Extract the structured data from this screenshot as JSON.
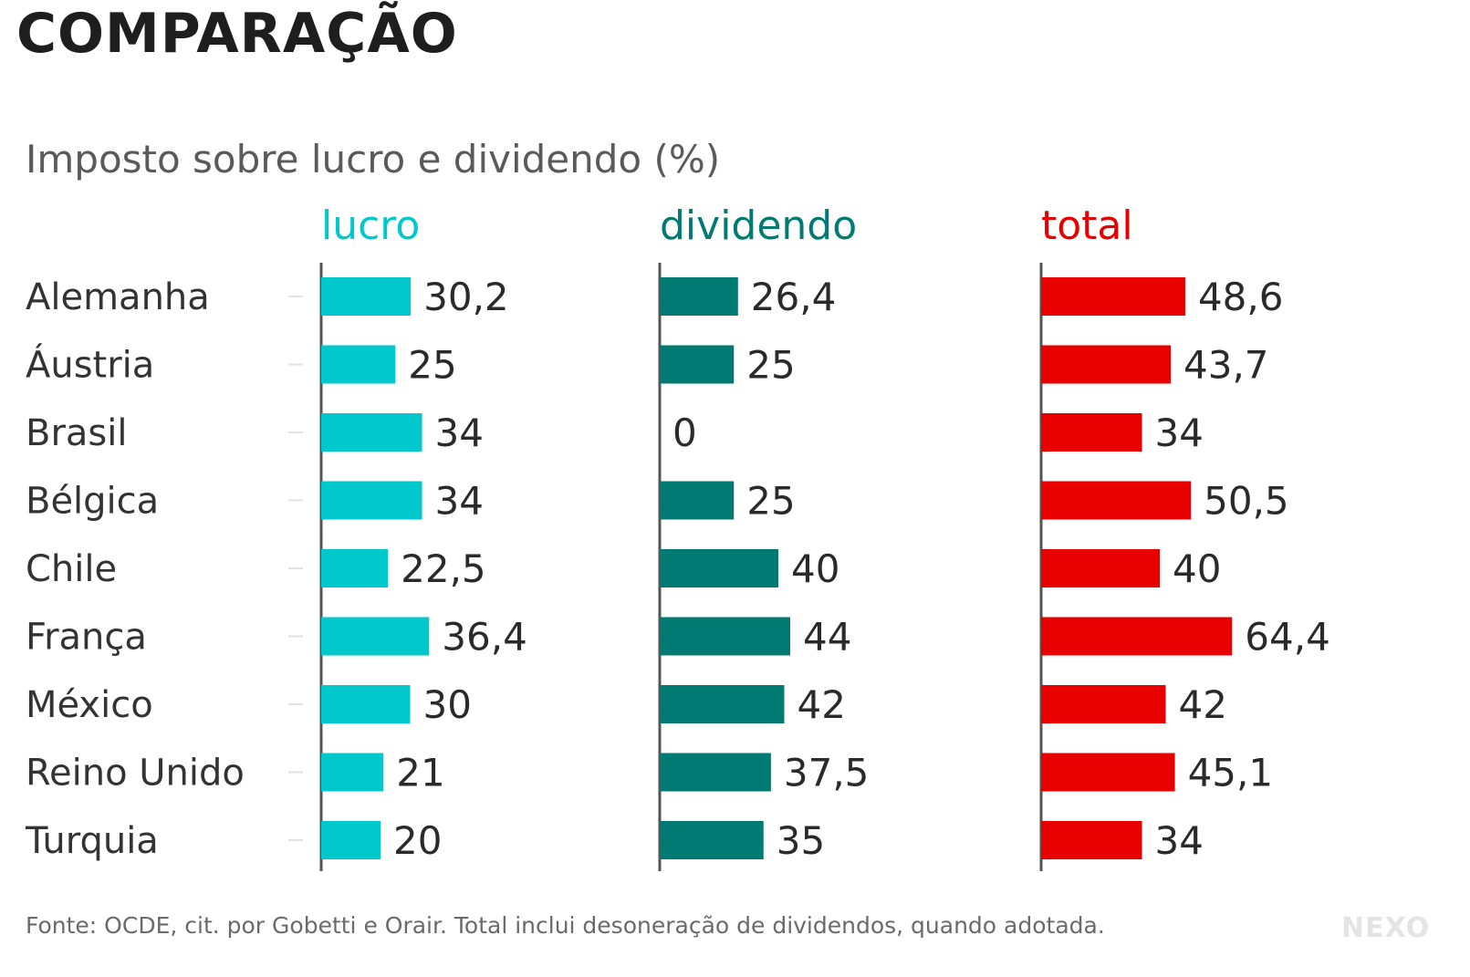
{
  "headline": "COMPARAÇÃO",
  "subtitle": "Imposto sobre lucro e dividendo (%)",
  "source": "Fonte: OCDE, cit. por Gobetti e Orair. Total inclui desoneração de dividendos, quando adotada.",
  "logo": "NEXO",
  "colors": {
    "lucro": "#00c8cc",
    "dividendo": "#007a72",
    "total": "#e80000"
  },
  "chart_data": {
    "type": "bar",
    "orientation": "horizontal",
    "title": "",
    "categories": [
      "Alemanha",
      "Áustria",
      "Brasil",
      "Bélgica",
      "Chile",
      "França",
      "México",
      "Reino Unido",
      "Turquia"
    ],
    "series": [
      {
        "name": "lucro",
        "values": [
          30.2,
          25,
          34,
          34,
          22.5,
          36.4,
          30,
          21,
          20
        ],
        "labels": [
          "30,2",
          "25",
          "34",
          "34",
          "22,5",
          "36,4",
          "30",
          "21",
          "20"
        ]
      },
      {
        "name": "dividendo",
        "values": [
          26.4,
          25,
          0,
          25,
          40,
          44,
          42,
          37.5,
          35
        ],
        "labels": [
          "26,4",
          "25",
          "0",
          "25",
          "40",
          "44",
          "42",
          "37,5",
          "35"
        ]
      },
      {
        "name": "total",
        "values": [
          48.6,
          43.7,
          34,
          50.5,
          40,
          64.4,
          42,
          45.1,
          34
        ],
        "labels": [
          "48,6",
          "43,7",
          "34",
          "50,5",
          "40",
          "64,4",
          "42",
          "45,1",
          "34"
        ]
      }
    ],
    "xlabel": "",
    "ylabel": "",
    "legend": "none",
    "grid": false
  }
}
